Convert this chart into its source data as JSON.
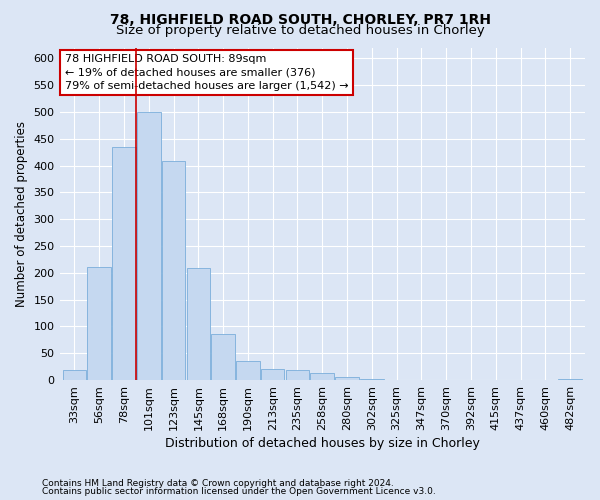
{
  "title1": "78, HIGHFIELD ROAD SOUTH, CHORLEY, PR7 1RH",
  "title2": "Size of property relative to detached houses in Chorley",
  "xlabel": "Distribution of detached houses by size in Chorley",
  "ylabel": "Number of detached properties",
  "footnote1": "Contains HM Land Registry data © Crown copyright and database right 2024.",
  "footnote2": "Contains public sector information licensed under the Open Government Licence v3.0.",
  "annotation_line1": "78 HIGHFIELD ROAD SOUTH: 89sqm",
  "annotation_line2": "← 19% of detached houses are smaller (376)",
  "annotation_line3": "79% of semi-detached houses are larger (1,542) →",
  "bar_labels": [
    "33sqm",
    "56sqm",
    "78sqm",
    "101sqm",
    "123sqm",
    "145sqm",
    "168sqm",
    "190sqm",
    "213sqm",
    "235sqm",
    "258sqm",
    "280sqm",
    "302sqm",
    "325sqm",
    "347sqm",
    "370sqm",
    "392sqm",
    "415sqm",
    "437sqm",
    "460sqm",
    "482sqm"
  ],
  "bar_values": [
    18,
    211,
    435,
    500,
    408,
    209,
    85,
    36,
    21,
    18,
    14,
    5,
    2,
    1,
    1,
    0,
    0,
    0,
    0,
    0,
    2
  ],
  "bar_color": "#c5d8f0",
  "bar_edge_color": "#7aaedb",
  "red_line_x": 3,
  "ylim": [
    0,
    620
  ],
  "yticks": [
    0,
    50,
    100,
    150,
    200,
    250,
    300,
    350,
    400,
    450,
    500,
    550,
    600
  ],
  "bg_color": "#dce6f5",
  "plot_bg_color": "#dce6f5",
  "annotation_box_facecolor": "#ffffff",
  "annotation_box_edgecolor": "#cc0000",
  "title1_fontsize": 10,
  "title2_fontsize": 9.5,
  "tick_fontsize": 8,
  "xlabel_fontsize": 9,
  "ylabel_fontsize": 8.5,
  "annotation_fontsize": 8,
  "footnote_fontsize": 6.5
}
